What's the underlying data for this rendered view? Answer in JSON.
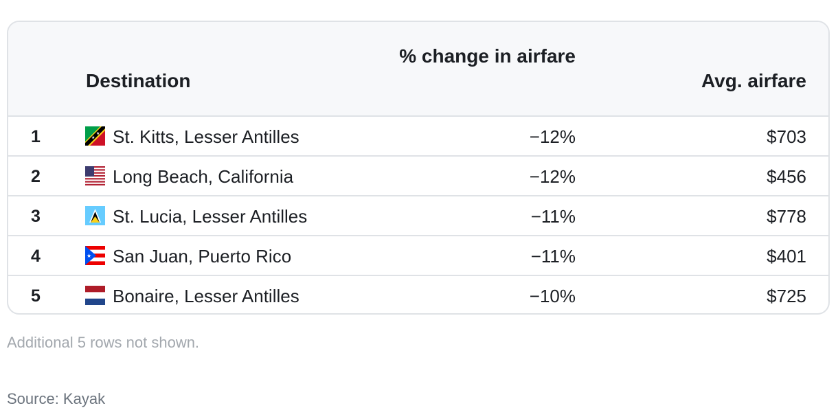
{
  "table": {
    "headers": {
      "destination": "Destination",
      "pct_change": "% change in airfare",
      "avg_airfare": "Avg. airfare"
    },
    "rows": [
      {
        "rank": "1",
        "flag": "st-kitts-and-nevis-flag-icon",
        "destination": "St. Kitts, Lesser Antilles",
        "pct_change": "−12%",
        "avg_airfare": "$703"
      },
      {
        "rank": "2",
        "flag": "united-states-flag-icon",
        "destination": "Long Beach, California",
        "pct_change": "−12%",
        "avg_airfare": "$456"
      },
      {
        "rank": "3",
        "flag": "saint-lucia-flag-icon",
        "destination": "St. Lucia, Lesser Antilles",
        "pct_change": "−11%",
        "avg_airfare": "$778"
      },
      {
        "rank": "4",
        "flag": "puerto-rico-flag-icon",
        "destination": "San Juan, Puerto Rico",
        "pct_change": "−11%",
        "avg_airfare": "$401"
      },
      {
        "rank": "5",
        "flag": "netherlands-flag-icon",
        "destination": "Bonaire, Lesser Antilles",
        "pct_change": "−10%",
        "avg_airfare": "$725"
      }
    ]
  },
  "footnote": "Additional 5 rows not shown.",
  "source": "Source: Kayak",
  "colors": {
    "border": "#dfe2e6",
    "header_bg": "#f7f8fa",
    "text": "#1c1f24",
    "note": "#a3a8ae",
    "source": "#6b737d"
  }
}
